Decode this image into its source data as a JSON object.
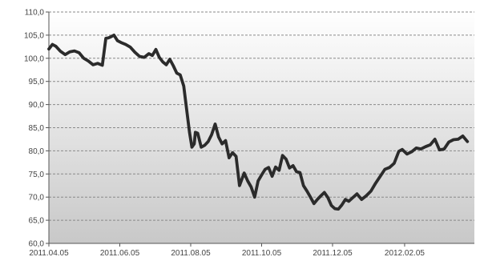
{
  "chart_data": {
    "type": "line",
    "title": "",
    "xlabel": "",
    "ylabel": "",
    "ylim": [
      60.0,
      110.0
    ],
    "ytick_labels": [
      "60,0",
      "65,0",
      "70,0",
      "75,0",
      "80,0",
      "85,0",
      "90,0",
      "95,0",
      "100,0",
      "105,0",
      "110,0"
    ],
    "ytick_values": [
      60,
      65,
      70,
      75,
      80,
      85,
      90,
      95,
      100,
      105,
      110
    ],
    "xtick_labels": [
      "2011.04.05",
      "2011.06.05",
      "2011.08.05",
      "2011.10.05",
      "2011.12.05",
      "2012.02.05"
    ],
    "xtick_dates": [
      "2011-04-05",
      "2011-06-05",
      "2011-08-05",
      "2011-10-05",
      "2011-12-05",
      "2012-02-05"
    ],
    "xlim": [
      "2011-04-05",
      "2012-04-05"
    ],
    "grid": "horizontal dashed",
    "legend": "none",
    "colors": {
      "line": "#2b2b2b",
      "background_top": "#ffffff",
      "background_bottom": "#c8c8c8",
      "grid": "#8a8a8a",
      "axis": "#555555"
    },
    "series": [
      {
        "x": [
          "2011-04-05",
          "2011-04-08",
          "2011-04-11",
          "2011-04-15",
          "2011-04-19",
          "2011-04-23",
          "2011-04-27",
          "2011-05-01",
          "2011-05-05",
          "2011-05-09",
          "2011-05-13",
          "2011-05-17",
          "2011-05-21",
          "2011-05-24",
          "2011-05-26",
          "2011-05-28",
          "2011-05-31",
          "2011-06-03",
          "2011-06-06",
          "2011-06-10",
          "2011-06-14",
          "2011-06-18",
          "2011-06-22",
          "2011-06-26",
          "2011-06-30",
          "2011-07-03",
          "2011-07-06",
          "2011-07-09",
          "2011-07-12",
          "2011-07-15",
          "2011-07-18",
          "2011-07-21",
          "2011-07-24",
          "2011-07-27",
          "2011-07-30",
          "2011-08-02",
          "2011-08-04",
          "2011-08-06",
          "2011-08-08",
          "2011-08-09",
          "2011-08-11",
          "2011-08-14",
          "2011-08-17",
          "2011-08-20",
          "2011-08-23",
          "2011-08-26",
          "2011-08-29",
          "2011-09-01",
          "2011-09-04",
          "2011-09-07",
          "2011-09-10",
          "2011-09-13",
          "2011-09-16",
          "2011-09-20",
          "2011-09-23",
          "2011-09-26",
          "2011-09-29",
          "2011-10-02",
          "2011-10-05",
          "2011-10-08",
          "2011-10-11",
          "2011-10-14",
          "2011-10-17",
          "2011-10-20",
          "2011-10-23",
          "2011-10-26",
          "2011-10-29",
          "2011-11-01",
          "2011-11-04",
          "2011-11-07",
          "2011-11-10",
          "2011-11-13",
          "2011-11-16",
          "2011-11-19",
          "2011-11-22",
          "2011-11-25",
          "2011-11-28",
          "2011-12-01",
          "2011-12-04",
          "2011-12-07",
          "2011-12-10",
          "2011-12-13",
          "2011-12-16",
          "2011-12-19",
          "2011-12-22",
          "2011-12-26",
          "2011-12-30",
          "2012-01-03",
          "2012-01-07",
          "2012-01-11",
          "2012-01-15",
          "2012-01-19",
          "2012-01-23",
          "2012-01-27",
          "2012-01-31",
          "2012-02-03",
          "2012-02-07",
          "2012-02-11",
          "2012-02-15",
          "2012-02-19",
          "2012-02-23",
          "2012-02-27",
          "2012-03-02",
          "2012-03-06",
          "2012-03-10",
          "2012-03-14",
          "2012-03-18",
          "2012-03-22",
          "2012-03-26",
          "2012-03-30"
        ],
        "y": [
          102.0,
          103.0,
          102.6,
          101.5,
          100.8,
          101.4,
          101.6,
          101.2,
          100.0,
          99.4,
          98.6,
          98.9,
          98.5,
          104.3,
          104.4,
          104.6,
          105.0,
          103.8,
          103.4,
          103.0,
          102.4,
          101.3,
          100.4,
          100.2,
          101.0,
          100.6,
          101.9,
          100.2,
          99.2,
          98.6,
          99.8,
          98.4,
          96.8,
          96.4,
          94.0,
          88.0,
          84.0,
          80.8,
          81.5,
          84.0,
          83.8,
          80.8,
          81.2,
          82.0,
          83.5,
          85.8,
          83.0,
          81.5,
          82.2,
          78.5,
          79.6,
          78.8,
          72.5,
          75.2,
          73.5,
          72.2,
          70.0,
          73.5,
          74.8,
          76.0,
          76.4,
          74.5,
          76.5,
          75.8,
          79.0,
          78.2,
          76.3,
          76.8,
          75.5,
          75.3,
          72.5,
          71.3,
          70.0,
          68.6,
          69.5,
          70.3,
          71.0,
          69.9,
          68.2,
          67.5,
          67.4,
          68.3,
          69.5,
          69.1,
          69.8,
          70.7,
          69.5,
          70.3,
          71.3,
          73.0,
          74.5,
          76.0,
          76.4,
          77.3,
          79.9,
          80.3,
          79.3,
          79.8,
          80.6,
          80.4,
          80.9,
          81.3,
          82.5,
          80.2,
          80.4,
          81.9,
          82.4,
          82.5,
          83.2,
          82.0
        ]
      }
    ]
  }
}
